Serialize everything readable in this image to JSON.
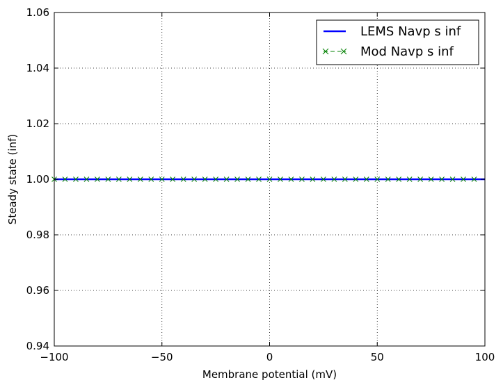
{
  "chart_data": {
    "type": "line",
    "xlabel": "Membrane potential (mV)",
    "ylabel": "Steady state (inf)",
    "xlim": [
      -100,
      100
    ],
    "ylim": [
      0.94,
      1.06
    ],
    "grid": true,
    "legend_position": "top-right",
    "x_ticks": [
      "−100",
      "−50",
      "0",
      "50",
      "100"
    ],
    "x_tick_values": [
      -100,
      -50,
      0,
      50,
      100
    ],
    "y_ticks": [
      "0.94",
      "0.96",
      "0.98",
      "1.00",
      "1.02",
      "1.04",
      "1.06"
    ],
    "y_tick_values": [
      0.94,
      0.96,
      0.98,
      1.0,
      1.02,
      1.04,
      1.06
    ],
    "series": [
      {
        "name": "LEMS Navp s inf",
        "style": "solid line",
        "color": "#0000ff",
        "x": [
          -100,
          100
        ],
        "y": [
          1.0,
          1.0
        ]
      },
      {
        "name": "Mod Navp s inf",
        "style": "dashed line with x markers",
        "color": "#008000",
        "x": [
          -100,
          -95,
          -90,
          -85,
          -80,
          -75,
          -70,
          -65,
          -60,
          -55,
          -50,
          -45,
          -40,
          -35,
          -30,
          -25,
          -20,
          -15,
          -10,
          -5,
          0,
          5,
          10,
          15,
          20,
          25,
          30,
          35,
          40,
          45,
          50,
          55,
          60,
          65,
          70,
          75,
          80,
          85,
          90,
          95
        ],
        "y": [
          1.0,
          1.0,
          1.0,
          1.0,
          1.0,
          1.0,
          1.0,
          1.0,
          1.0,
          1.0,
          1.0,
          1.0,
          1.0,
          1.0,
          1.0,
          1.0,
          1.0,
          1.0,
          1.0,
          1.0,
          1.0,
          1.0,
          1.0,
          1.0,
          1.0,
          1.0,
          1.0,
          1.0,
          1.0,
          1.0,
          1.0,
          1.0,
          1.0,
          1.0,
          1.0,
          1.0,
          1.0,
          1.0,
          1.0,
          1.0
        ]
      }
    ]
  }
}
